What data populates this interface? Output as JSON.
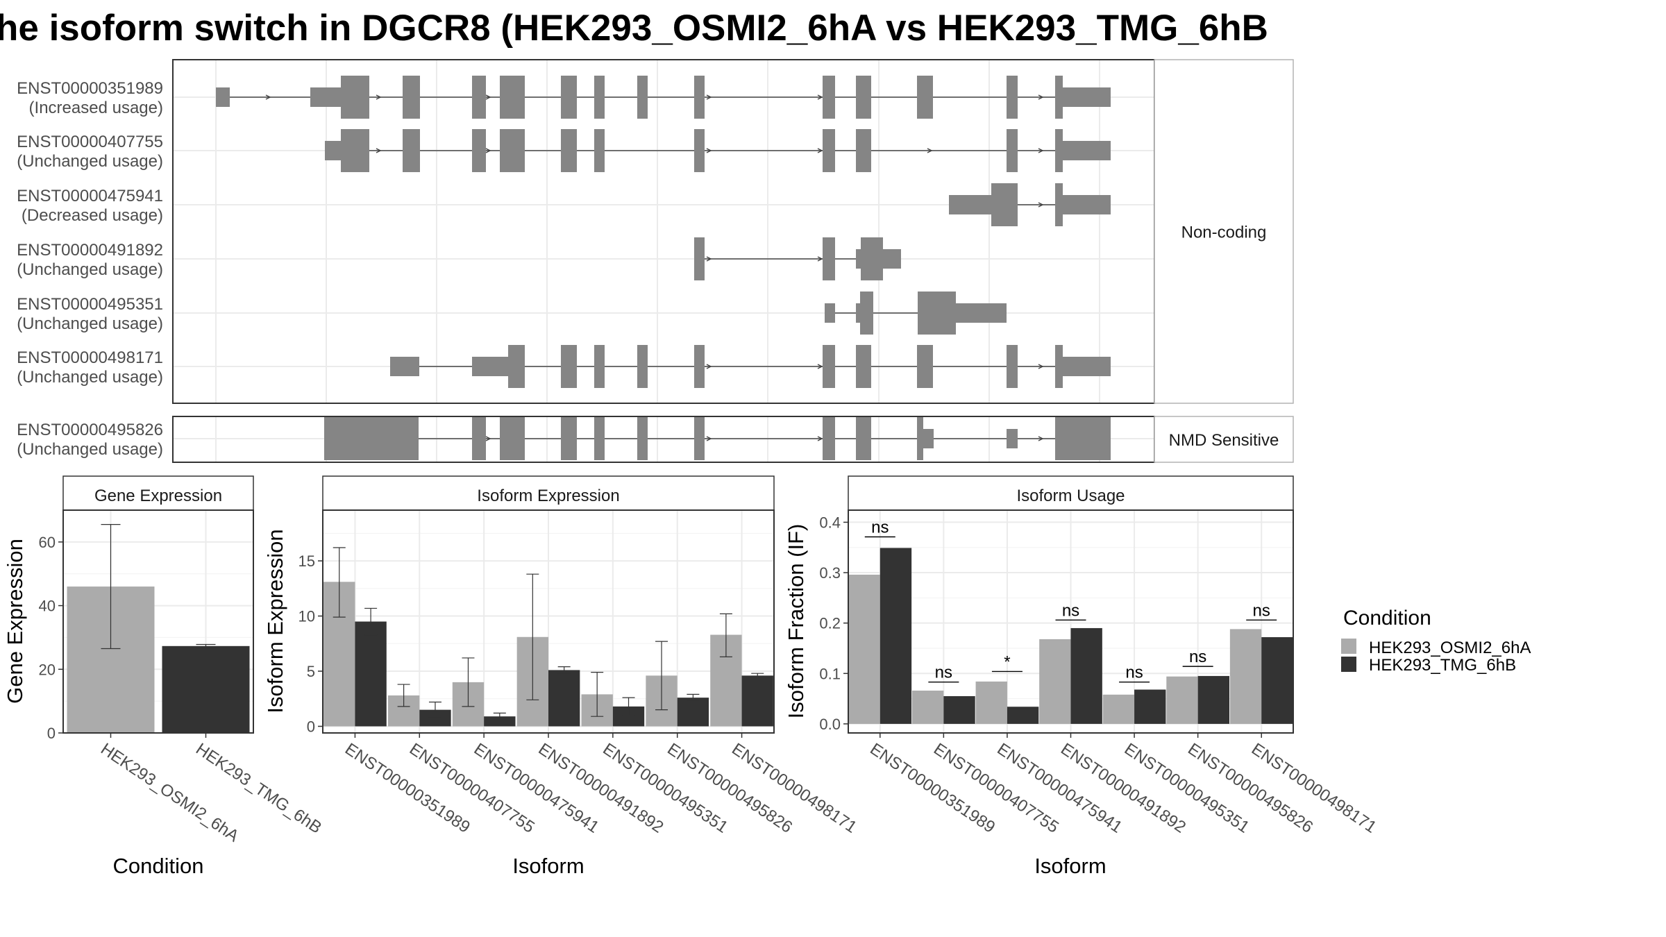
{
  "title": "he isoform switch in DGCR8 (HEK293_OSMI2_6hA vs HEK293_TMG_6hB",
  "colors": {
    "cond_a": "#ababab",
    "cond_b": "#333333",
    "feature": "#858585",
    "grid": "#ebebeb",
    "panel_border": "#333333",
    "strip_bg": "#ffffff"
  },
  "structure": {
    "groups": [
      {
        "label": "Non-coding",
        "isoforms": [
          {
            "id": "ENST00000351989",
            "usage": "(Increased usage)"
          },
          {
            "id": "ENST00000407755",
            "usage": "(Unchanged usage)"
          },
          {
            "id": "ENST00000475941",
            "usage": "(Decreased usage)"
          },
          {
            "id": "ENST00000491892",
            "usage": "(Unchanged usage)"
          },
          {
            "id": "ENST00000495351",
            "usage": "(Unchanged usage)"
          },
          {
            "id": "ENST00000498171",
            "usage": "(Unchanged usage)"
          }
        ]
      },
      {
        "label": "NMD Sensitive",
        "isoforms": [
          {
            "id": "ENST00000495826",
            "usage": "(Unchanged usage)"
          }
        ]
      }
    ]
  },
  "chart_data": [
    {
      "type": "bar",
      "title": "Gene Expression",
      "xlabel": "Condition",
      "ylabel": "Gene Expression",
      "categories": [
        "HEK293_OSMI2_6hA",
        "HEK293_TMG_6hB"
      ],
      "values": [
        46,
        27.3
      ],
      "error_low": [
        26.5,
        26.7
      ],
      "error_high": [
        65.5,
        27.8
      ],
      "ylim": [
        0,
        70
      ],
      "yticks": [
        0,
        20,
        40,
        60
      ]
    },
    {
      "type": "bar",
      "title": "Isoform Expression",
      "xlabel": "Isoform",
      "ylabel": "Isoform Expression",
      "categories": [
        "ENST00000351989",
        "ENST00000407755",
        "ENST00000475941",
        "ENST00000491892",
        "ENST00000495351",
        "ENST00000495826",
        "ENST00000498171"
      ],
      "series": [
        {
          "name": "HEK293_OSMI2_6hA",
          "values": [
            13.1,
            2.8,
            4.0,
            8.1,
            2.9,
            4.6,
            8.3
          ],
          "error_low": [
            9.9,
            1.8,
            1.8,
            2.4,
            0.9,
            1.5,
            6.3
          ],
          "error_high": [
            16.2,
            3.8,
            6.2,
            13.8,
            4.9,
            7.7,
            10.2
          ]
        },
        {
          "name": "HEK293_TMG_6hB",
          "values": [
            9.5,
            1.5,
            0.9,
            5.1,
            1.8,
            2.6,
            4.6
          ],
          "error_low": [
            8.3,
            0.8,
            0.6,
            4.8,
            1.0,
            2.3,
            4.5
          ],
          "error_high": [
            10.7,
            2.2,
            1.2,
            5.4,
            2.6,
            2.9,
            4.8
          ]
        }
      ],
      "ylim": [
        -0.6,
        19.6
      ],
      "yticks": [
        0,
        5,
        10,
        15
      ]
    },
    {
      "type": "bar",
      "title": "Isoform Usage",
      "xlabel": "Isoform",
      "ylabel": "Isoform Fraction (IF)",
      "categories": [
        "ENST00000351989",
        "ENST00000407755",
        "ENST00000475941",
        "ENST00000491892",
        "ENST00000495351",
        "ENST00000495826",
        "ENST00000498171"
      ],
      "series": [
        {
          "name": "HEK293_OSMI2_6hA",
          "values": [
            0.296,
            0.066,
            0.084,
            0.168,
            0.058,
            0.094,
            0.188
          ]
        },
        {
          "name": "HEK293_TMG_6hB",
          "values": [
            0.349,
            0.055,
            0.034,
            0.19,
            0.068,
            0.095,
            0.172
          ]
        }
      ],
      "significance": [
        "ns",
        "ns",
        "*",
        "ns",
        "ns",
        "ns",
        "ns"
      ],
      "sig_y": [
        0.371,
        0.083,
        0.104,
        0.206,
        0.083,
        0.114,
        0.206
      ],
      "ylim": [
        -0.018,
        0.424
      ],
      "yticks": [
        0.0,
        0.1,
        0.2,
        0.3,
        0.4
      ],
      "yticklabels": [
        "0.0",
        "0.1",
        "0.2",
        "0.3",
        "0.4"
      ]
    }
  ],
  "legend": {
    "title": "Condition",
    "items": [
      {
        "label": "HEK293_OSMI2_6hA",
        "color": "#ababab"
      },
      {
        "label": "HEK293_TMG_6hB",
        "color": "#333333"
      }
    ]
  }
}
